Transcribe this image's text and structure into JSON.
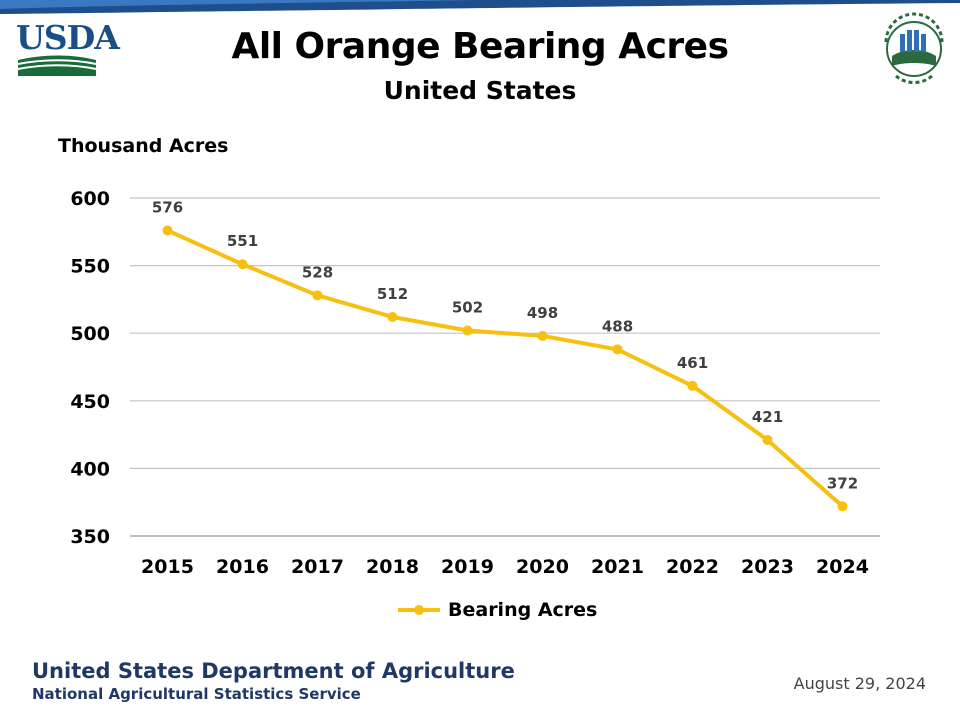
{
  "header": {
    "logo_left": "USDA",
    "logo_right": "AGRICULTURE COUNTS"
  },
  "chart_data": {
    "type": "line",
    "title": "All Orange Bearing Acres",
    "subtitle": "United States",
    "ylabel": "Thousand Acres",
    "xlabel": "",
    "ylim": [
      350,
      600
    ],
    "yticks": [
      350,
      400,
      450,
      500,
      550,
      600
    ],
    "grid": true,
    "legend_position": "bottom",
    "categories": [
      "2015",
      "2016",
      "2017",
      "2018",
      "2019",
      "2020",
      "2021",
      "2022",
      "2023",
      "2024"
    ],
    "series": [
      {
        "name": "Bearing Acres",
        "color": "#f7bf0f",
        "values": [
          576,
          551,
          528,
          512,
          502,
          498,
          488,
          461,
          421,
          372
        ],
        "data_labels": true
      }
    ]
  },
  "footer": {
    "department": "United States Department of Agriculture",
    "service": "National Agricultural Statistics Service",
    "date": "August 29, 2024"
  }
}
